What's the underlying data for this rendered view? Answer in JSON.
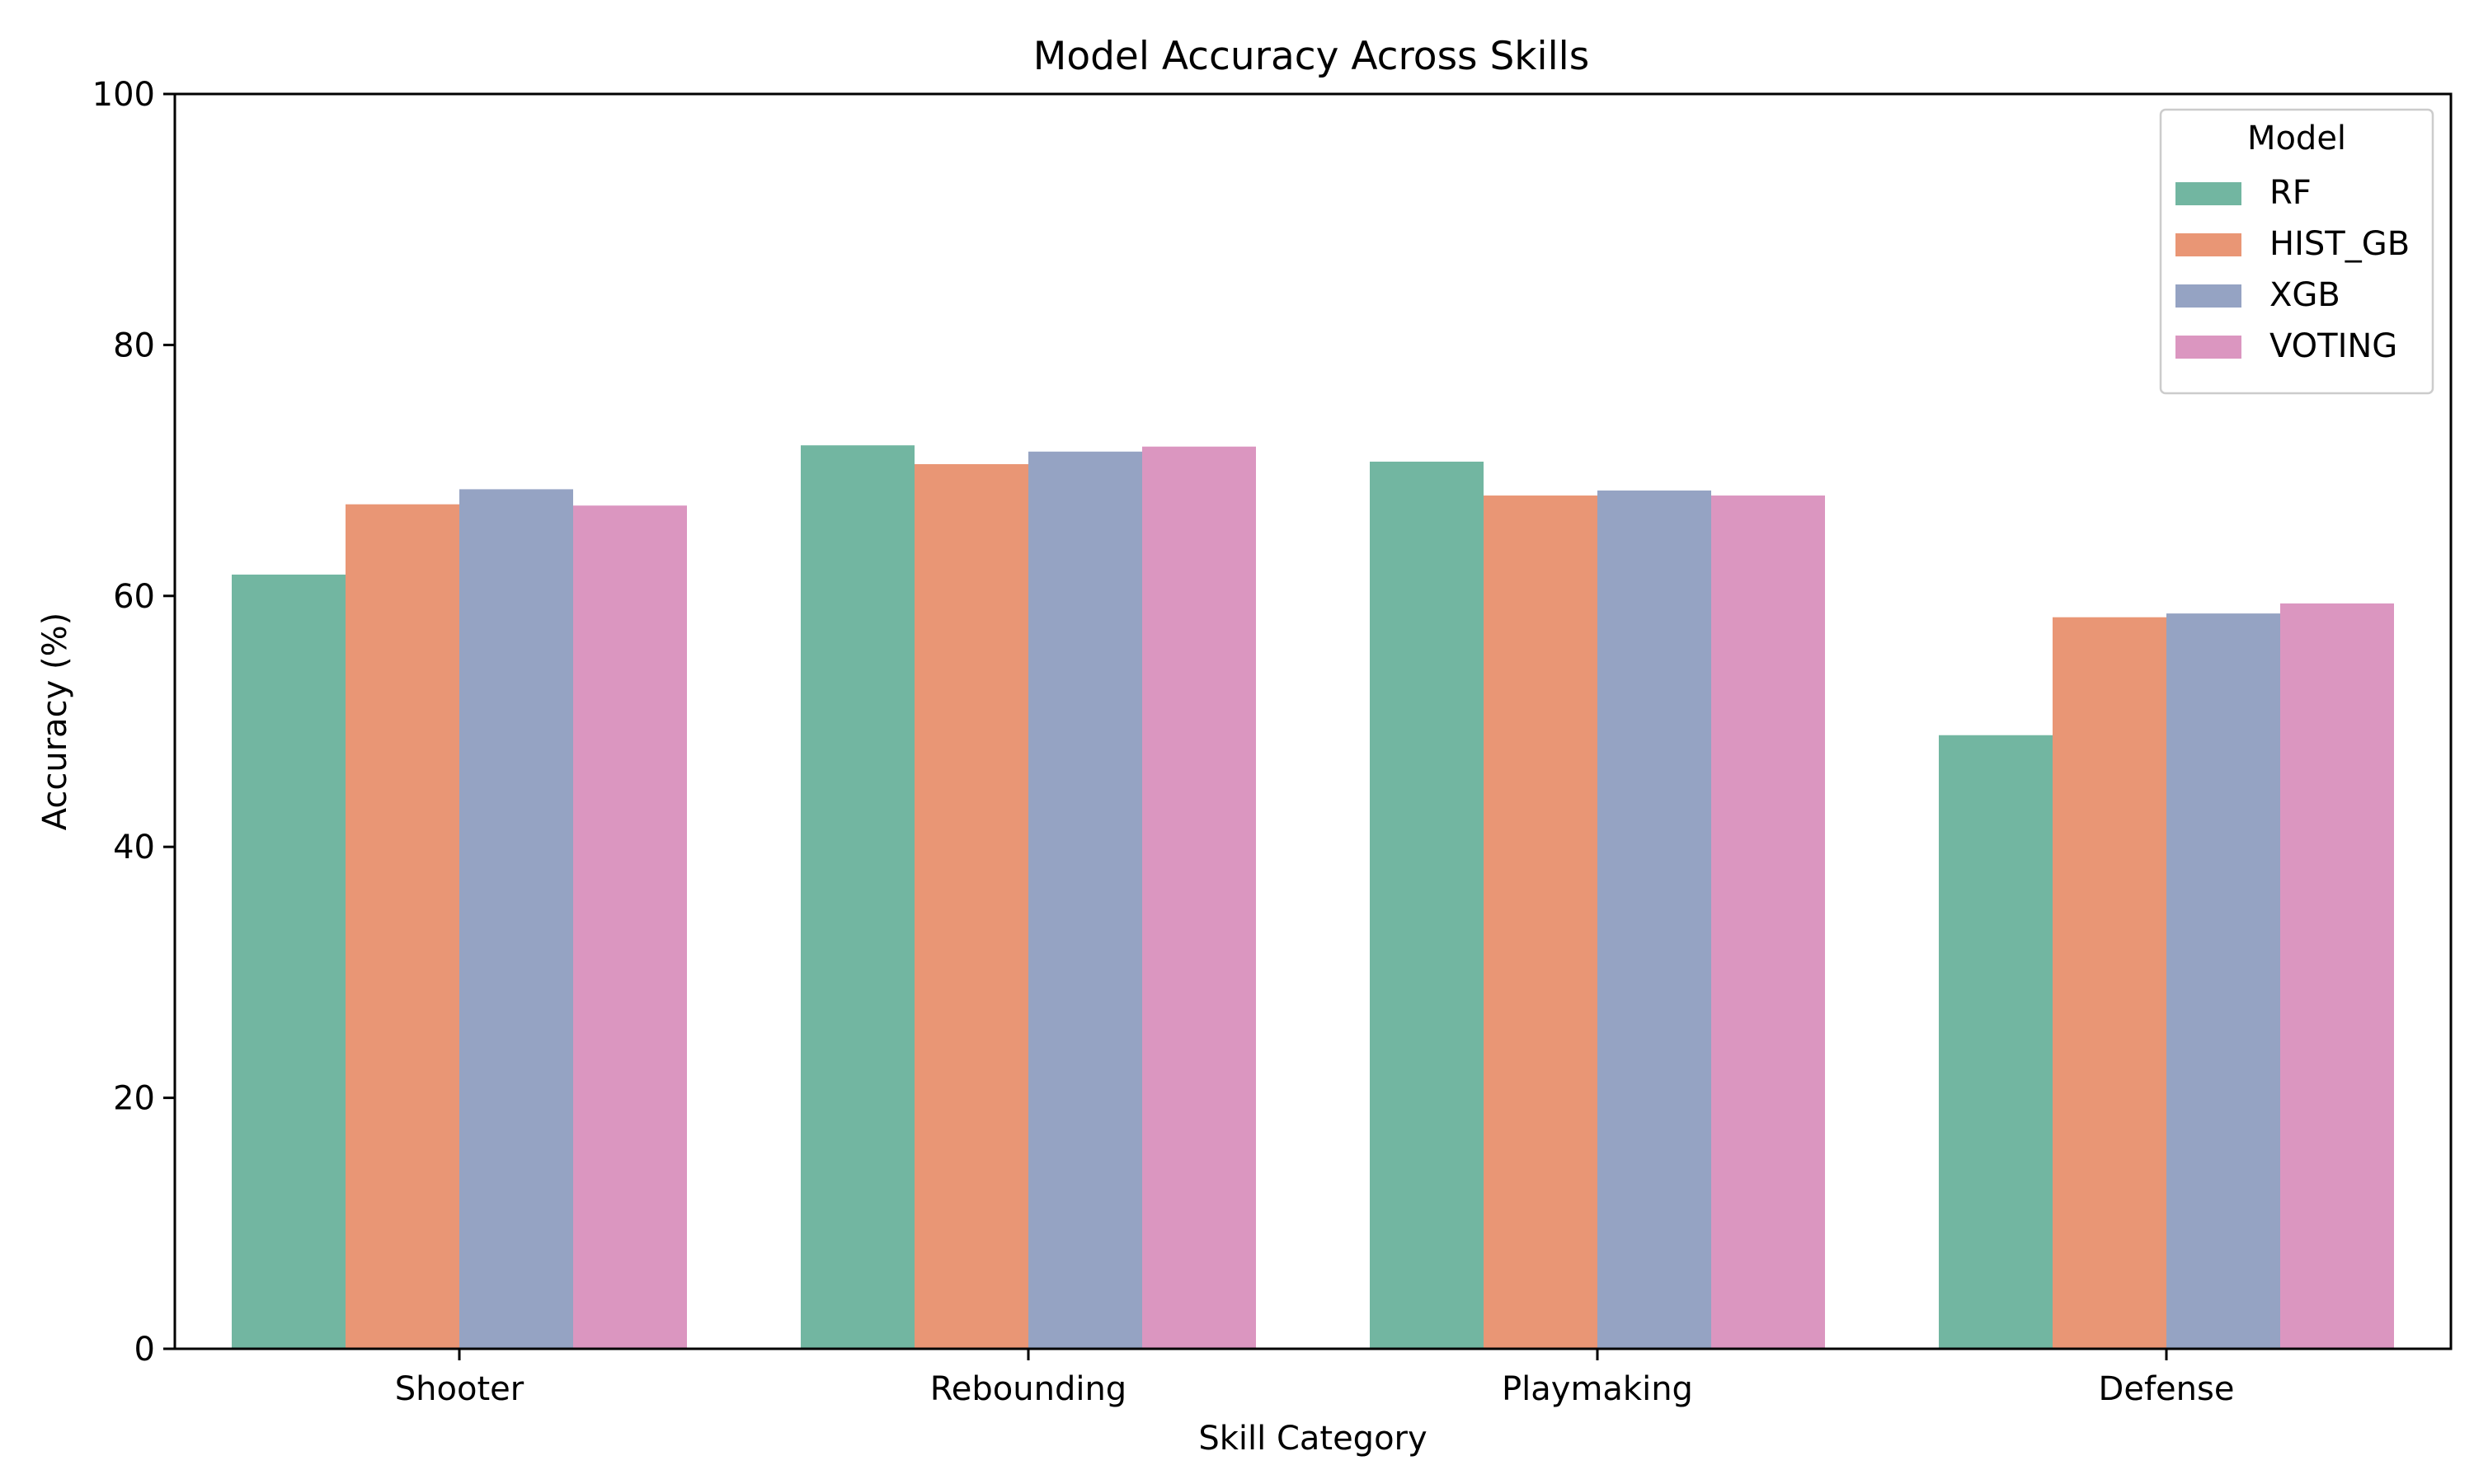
{
  "chart_data": {
    "type": "bar",
    "title": "Model Accuracy Across Skills",
    "xlabel": "Skill Category",
    "ylabel": "Accuracy (%)",
    "ylim": [
      0,
      100
    ],
    "yticks": [
      0,
      20,
      40,
      60,
      80,
      100
    ],
    "categories": [
      "Shooter",
      "Rebounding",
      "Playmaking",
      "Defense"
    ],
    "series": [
      {
        "name": "RF",
        "color": "#72b6a1",
        "values": [
          61.7,
          72.0,
          70.7,
          48.9
        ]
      },
      {
        "name": "HIST_GB",
        "color": "#e99675",
        "values": [
          67.3,
          70.5,
          68.0,
          58.3
        ]
      },
      {
        "name": "XGB",
        "color": "#95a3c3",
        "values": [
          68.5,
          71.5,
          68.4,
          58.6
        ]
      },
      {
        "name": "VOTING",
        "color": "#db96c0",
        "values": [
          67.2,
          71.9,
          68.0,
          59.4
        ]
      }
    ],
    "legend": {
      "title": "Model",
      "position": "top-right"
    },
    "grid": false
  }
}
